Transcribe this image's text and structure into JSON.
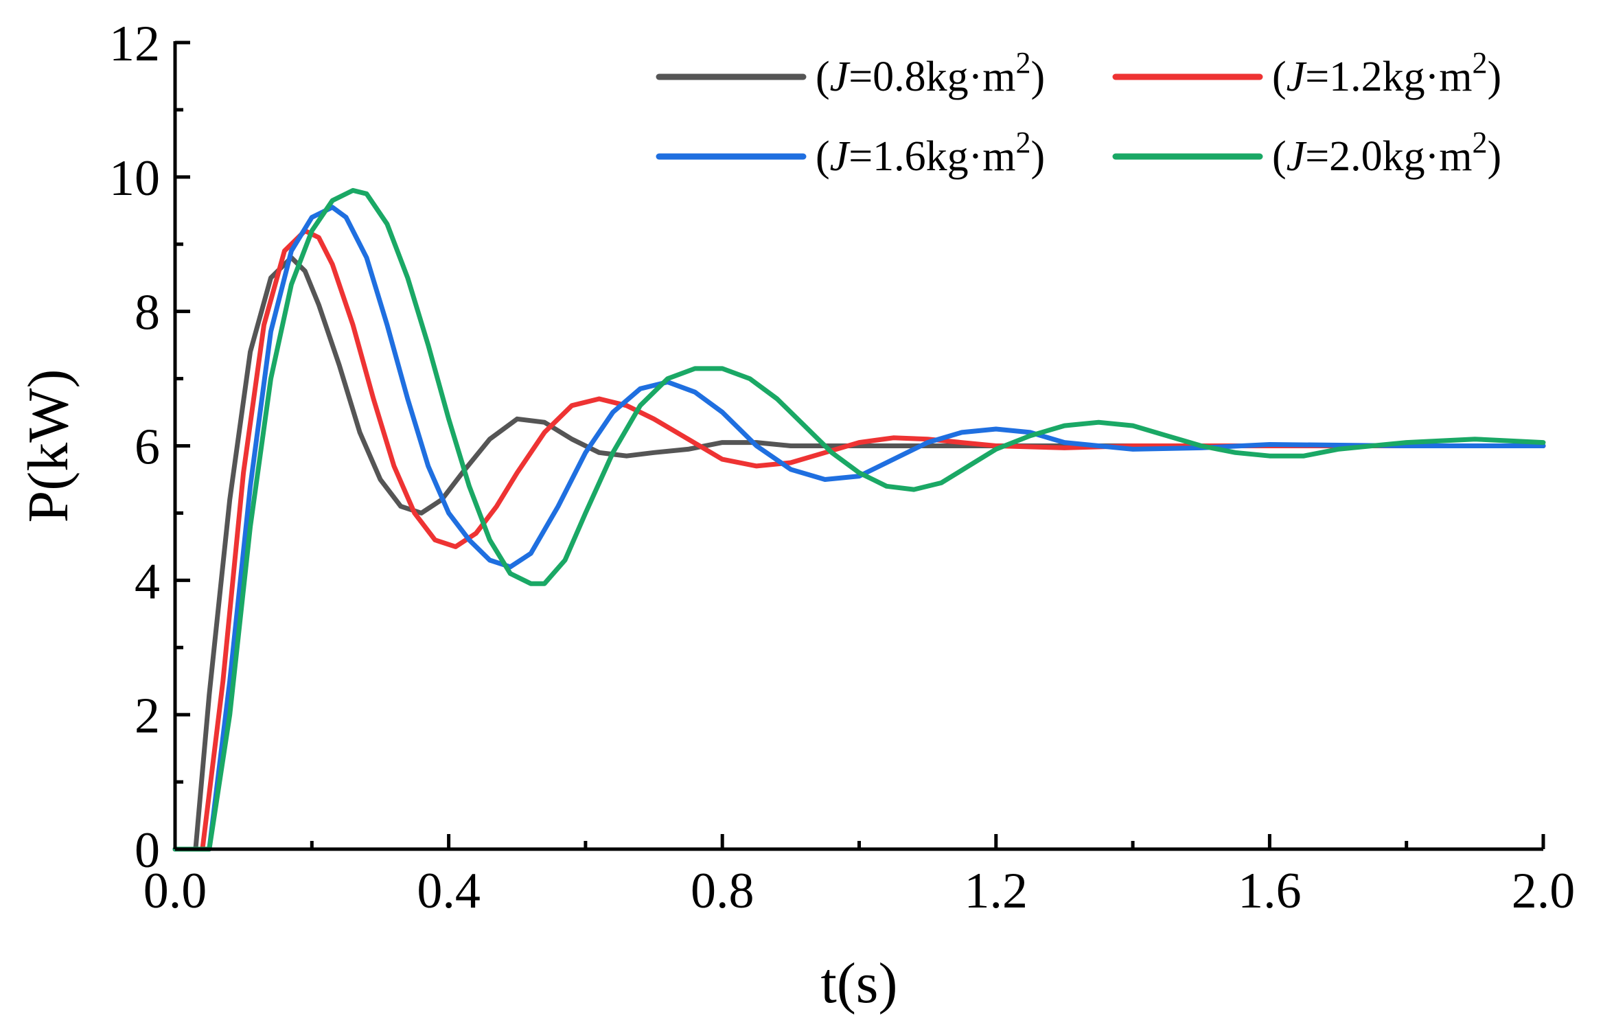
{
  "chart_data": {
    "type": "line",
    "title": "",
    "xlabel": "t(s)",
    "ylabel": "P(kW)",
    "xlim": [
      0,
      2.0
    ],
    "ylim": [
      0,
      12
    ],
    "x_ticks": [
      "0.0",
      "0.4",
      "0.8",
      "1.2",
      "1.6",
      "2.0"
    ],
    "x_tick_values": [
      0,
      0.4,
      0.8,
      1.2,
      1.6,
      2.0
    ],
    "y_ticks": [
      "0",
      "2",
      "4",
      "6",
      "8",
      "10",
      "12"
    ],
    "y_tick_values": [
      0,
      2,
      4,
      6,
      8,
      10,
      12
    ],
    "grid": false,
    "legend_position": "top-right",
    "series": [
      {
        "name": "(J=0.8kg·m2)",
        "label_prefix": "(",
        "label_var": "J",
        "label_mid": "=0.8kg·m",
        "label_sup": "2",
        "label_suffix": ")",
        "color": "#555555",
        "x": [
          0.0,
          0.03,
          0.05,
          0.08,
          0.11,
          0.14,
          0.17,
          0.19,
          0.21,
          0.24,
          0.27,
          0.3,
          0.33,
          0.36,
          0.39,
          0.42,
          0.46,
          0.5,
          0.54,
          0.58,
          0.62,
          0.66,
          0.7,
          0.75,
          0.8,
          0.85,
          0.9,
          1.0,
          1.1,
          1.2,
          1.4,
          1.6,
          1.8,
          2.0
        ],
        "y": [
          0.0,
          0.0,
          2.3,
          5.2,
          7.4,
          8.5,
          8.8,
          8.6,
          8.1,
          7.2,
          6.2,
          5.5,
          5.1,
          5.0,
          5.2,
          5.6,
          6.1,
          6.4,
          6.35,
          6.1,
          5.9,
          5.85,
          5.9,
          5.95,
          6.05,
          6.05,
          6.0,
          6.0,
          6.0,
          6.0,
          6.0,
          6.0,
          6.0,
          6.0
        ]
      },
      {
        "name": "(J=1.2kg·m2)",
        "label_prefix": "(",
        "label_var": "J",
        "label_mid": "=1.2kg·m",
        "label_sup": "2",
        "label_suffix": ")",
        "color": "#ee3333",
        "x": [
          0.0,
          0.04,
          0.07,
          0.1,
          0.13,
          0.16,
          0.19,
          0.21,
          0.23,
          0.26,
          0.29,
          0.32,
          0.35,
          0.38,
          0.41,
          0.44,
          0.47,
          0.5,
          0.54,
          0.58,
          0.62,
          0.66,
          0.7,
          0.75,
          0.8,
          0.85,
          0.9,
          0.95,
          1.0,
          1.05,
          1.1,
          1.2,
          1.3,
          1.4,
          1.6,
          1.8,
          2.0
        ],
        "y": [
          0.0,
          0.0,
          2.5,
          5.6,
          7.8,
          8.9,
          9.2,
          9.1,
          8.7,
          7.8,
          6.7,
          5.7,
          5.0,
          4.6,
          4.5,
          4.7,
          5.1,
          5.6,
          6.2,
          6.6,
          6.7,
          6.6,
          6.4,
          6.1,
          5.8,
          5.7,
          5.75,
          5.9,
          6.05,
          6.12,
          6.1,
          6.0,
          5.97,
          6.0,
          6.0,
          6.0,
          6.0
        ]
      },
      {
        "name": "(J=1.6kg·m2)",
        "label_prefix": "(",
        "label_var": "J",
        "label_mid": "=1.6kg·m",
        "label_sup": "2",
        "label_suffix": ")",
        "color": "#1f6fe0",
        "x": [
          0.0,
          0.05,
          0.08,
          0.11,
          0.14,
          0.17,
          0.2,
          0.23,
          0.25,
          0.28,
          0.31,
          0.34,
          0.37,
          0.4,
          0.43,
          0.46,
          0.49,
          0.52,
          0.56,
          0.6,
          0.64,
          0.68,
          0.72,
          0.76,
          0.8,
          0.85,
          0.9,
          0.95,
          1.0,
          1.05,
          1.1,
          1.15,
          1.2,
          1.25,
          1.3,
          1.4,
          1.5,
          1.6,
          1.8,
          2.0
        ],
        "y": [
          0.0,
          0.0,
          2.5,
          5.4,
          7.7,
          8.9,
          9.4,
          9.55,
          9.4,
          8.8,
          7.8,
          6.7,
          5.7,
          5.0,
          4.6,
          4.3,
          4.2,
          4.4,
          5.1,
          5.9,
          6.5,
          6.85,
          6.95,
          6.8,
          6.5,
          6.0,
          5.65,
          5.5,
          5.55,
          5.8,
          6.05,
          6.2,
          6.25,
          6.2,
          6.05,
          5.95,
          5.97,
          6.02,
          6.0,
          6.0
        ]
      },
      {
        "name": "(J=2.0kg·m2)",
        "label_prefix": "(",
        "label_var": "J",
        "label_mid": "=2.0kg·m",
        "label_sup": "2",
        "label_suffix": ")",
        "color": "#1aa865",
        "x": [
          0.0,
          0.05,
          0.08,
          0.11,
          0.14,
          0.17,
          0.2,
          0.23,
          0.26,
          0.28,
          0.31,
          0.34,
          0.37,
          0.4,
          0.43,
          0.46,
          0.49,
          0.52,
          0.54,
          0.57,
          0.6,
          0.64,
          0.68,
          0.72,
          0.76,
          0.8,
          0.84,
          0.88,
          0.92,
          0.96,
          1.0,
          1.04,
          1.08,
          1.12,
          1.16,
          1.2,
          1.25,
          1.3,
          1.35,
          1.4,
          1.45,
          1.5,
          1.55,
          1.6,
          1.65,
          1.7,
          1.8,
          1.9,
          2.0
        ],
        "y": [
          0.0,
          0.0,
          2.0,
          4.8,
          7.0,
          8.4,
          9.2,
          9.65,
          9.8,
          9.75,
          9.3,
          8.5,
          7.5,
          6.4,
          5.4,
          4.6,
          4.1,
          3.95,
          3.95,
          4.3,
          5.0,
          5.9,
          6.6,
          7.0,
          7.15,
          7.15,
          7.0,
          6.7,
          6.3,
          5.9,
          5.6,
          5.4,
          5.35,
          5.45,
          5.7,
          5.95,
          6.15,
          6.3,
          6.35,
          6.3,
          6.15,
          6.0,
          5.9,
          5.85,
          5.85,
          5.95,
          6.05,
          6.1,
          6.05
        ]
      }
    ]
  }
}
